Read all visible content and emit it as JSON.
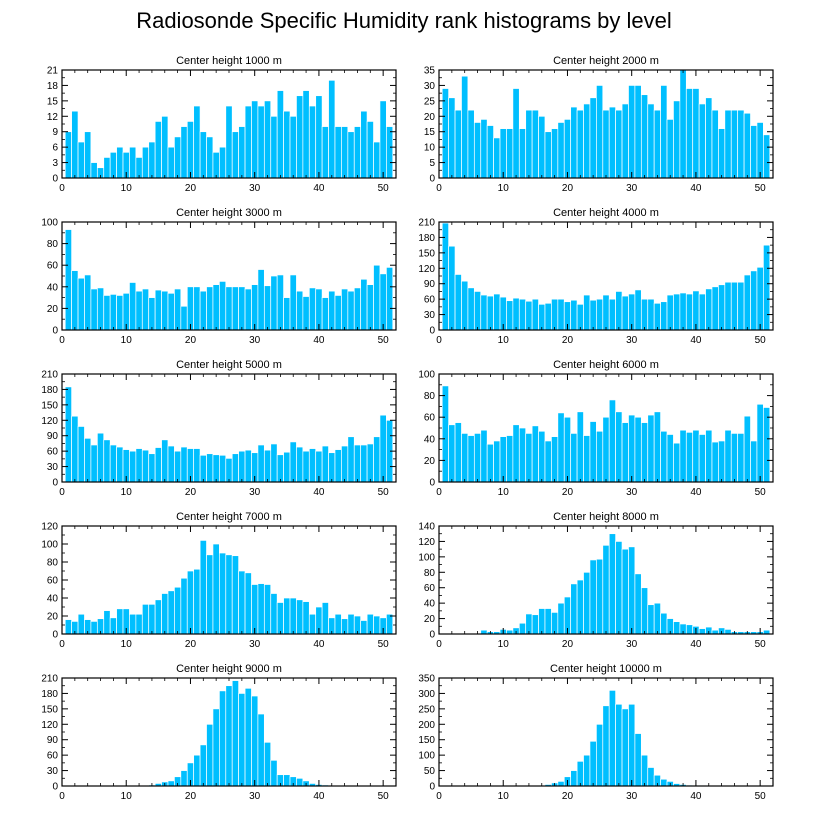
{
  "title": "Radiosonde Specific Humidity rank histograms by level",
  "style": {
    "bar_color": "#00bfff",
    "bar_edge": "#ffffff",
    "axis_color": "#000000"
  },
  "chart_data": [
    {
      "type": "bar",
      "title": "Center height 1000 m",
      "xlim": [
        0,
        52
      ],
      "ylim": [
        0,
        21
      ],
      "xticks": [
        0,
        10,
        20,
        30,
        40,
        50
      ],
      "yticks": [
        0,
        3,
        6,
        9,
        12,
        15,
        18,
        21
      ],
      "x": [
        1,
        2,
        3,
        4,
        5,
        6,
        7,
        8,
        9,
        10,
        11,
        12,
        13,
        14,
        15,
        16,
        17,
        18,
        19,
        20,
        21,
        22,
        23,
        24,
        25,
        26,
        27,
        28,
        29,
        30,
        31,
        32,
        33,
        34,
        35,
        36,
        37,
        38,
        39,
        40,
        41,
        42,
        43,
        44,
        45,
        46,
        47,
        48,
        49,
        50,
        51
      ],
      "values": [
        9,
        13,
        7,
        9,
        3,
        2,
        4,
        5,
        6,
        5,
        6,
        4,
        6,
        7,
        11,
        12,
        6,
        8,
        10,
        11,
        14,
        9,
        8,
        5,
        6,
        14,
        9,
        10,
        14,
        15,
        14,
        15,
        12,
        17,
        13,
        12,
        16,
        17,
        14,
        16,
        10,
        19,
        10,
        10,
        9,
        10,
        13,
        11,
        7,
        15,
        10
      ]
    },
    {
      "type": "bar",
      "title": "Center height 2000 m",
      "xlim": [
        0,
        52
      ],
      "ylim": [
        0,
        35
      ],
      "xticks": [
        0,
        10,
        20,
        30,
        40,
        50
      ],
      "yticks": [
        0,
        5,
        10,
        15,
        20,
        25,
        30,
        35
      ],
      "x": [
        1,
        2,
        3,
        4,
        5,
        6,
        7,
        8,
        9,
        10,
        11,
        12,
        13,
        14,
        15,
        16,
        17,
        18,
        19,
        20,
        21,
        22,
        23,
        24,
        25,
        26,
        27,
        28,
        29,
        30,
        31,
        32,
        33,
        34,
        35,
        36,
        37,
        38,
        39,
        40,
        41,
        42,
        43,
        44,
        45,
        46,
        47,
        48,
        49,
        50,
        51
      ],
      "values": [
        29,
        26,
        22,
        33,
        22,
        18,
        19,
        17,
        13,
        16,
        16,
        29,
        16,
        22,
        22,
        20,
        15,
        16,
        18,
        19,
        23,
        22,
        24,
        26,
        30,
        22,
        23,
        22,
        24,
        30,
        30,
        27,
        24,
        22,
        30,
        19,
        25,
        35,
        29,
        29,
        24,
        26,
        22,
        16,
        22,
        22,
        22,
        21,
        17,
        18,
        14
      ]
    },
    {
      "type": "bar",
      "title": "Center height 3000 m",
      "xlim": [
        0,
        52
      ],
      "ylim": [
        0,
        100
      ],
      "xticks": [
        0,
        10,
        20,
        30,
        40,
        50
      ],
      "yticks": [
        0,
        20,
        40,
        60,
        80,
        100
      ],
      "x": [
        1,
        2,
        3,
        4,
        5,
        6,
        7,
        8,
        9,
        10,
        11,
        12,
        13,
        14,
        15,
        16,
        17,
        18,
        19,
        20,
        21,
        22,
        23,
        24,
        25,
        26,
        27,
        28,
        29,
        30,
        31,
        32,
        33,
        34,
        35,
        36,
        37,
        38,
        39,
        40,
        41,
        42,
        43,
        44,
        45,
        46,
        47,
        48,
        49,
        50,
        51
      ],
      "values": [
        93,
        55,
        48,
        51,
        38,
        39,
        32,
        33,
        32,
        34,
        44,
        36,
        38,
        30,
        37,
        36,
        34,
        38,
        22,
        40,
        40,
        36,
        40,
        42,
        45,
        40,
        40,
        40,
        38,
        42,
        56,
        41,
        50,
        51,
        30,
        51,
        36,
        31,
        39,
        38,
        30,
        36,
        32,
        38,
        36,
        39,
        47,
        42,
        60,
        52,
        58
      ]
    },
    {
      "type": "bar",
      "title": "Center height 4000 m",
      "xlim": [
        0,
        52
      ],
      "ylim": [
        0,
        210
      ],
      "xticks": [
        0,
        10,
        20,
        30,
        40,
        50
      ],
      "yticks": [
        0,
        30,
        60,
        90,
        120,
        150,
        180,
        210
      ],
      "x": [
        1,
        2,
        3,
        4,
        5,
        6,
        7,
        8,
        9,
        10,
        11,
        12,
        13,
        14,
        15,
        16,
        17,
        18,
        19,
        20,
        21,
        22,
        23,
        24,
        25,
        26,
        27,
        28,
        29,
        30,
        31,
        32,
        33,
        34,
        35,
        36,
        37,
        38,
        39,
        40,
        41,
        42,
        43,
        44,
        45,
        46,
        47,
        48,
        49,
        50,
        51
      ],
      "values": [
        208,
        163,
        108,
        95,
        82,
        75,
        68,
        66,
        70,
        64,
        57,
        62,
        60,
        56,
        60,
        50,
        52,
        60,
        60,
        55,
        58,
        50,
        68,
        58,
        60,
        68,
        60,
        75,
        66,
        70,
        78,
        60,
        60,
        52,
        55,
        68,
        70,
        72,
        70,
        76,
        70,
        80,
        84,
        88,
        93,
        93,
        93,
        107,
        115,
        122,
        165
      ]
    },
    {
      "type": "bar",
      "title": "Center height 5000 m",
      "xlim": [
        0,
        52
      ],
      "ylim": [
        0,
        210
      ],
      "xticks": [
        0,
        10,
        20,
        30,
        40,
        50
      ],
      "yticks": [
        0,
        30,
        60,
        90,
        120,
        150,
        180,
        210
      ],
      "x": [
        1,
        2,
        3,
        4,
        5,
        6,
        7,
        8,
        9,
        10,
        11,
        12,
        13,
        14,
        15,
        16,
        17,
        18,
        19,
        20,
        21,
        22,
        23,
        24,
        25,
        26,
        27,
        28,
        29,
        30,
        31,
        32,
        33,
        34,
        35,
        36,
        37,
        38,
        39,
        40,
        41,
        42,
        43,
        44,
        45,
        46,
        47,
        48,
        49,
        50,
        51
      ],
      "values": [
        185,
        128,
        108,
        85,
        72,
        95,
        82,
        72,
        68,
        63,
        60,
        65,
        62,
        55,
        67,
        82,
        70,
        60,
        68,
        65,
        65,
        52,
        55,
        53,
        52,
        46,
        55,
        60,
        62,
        57,
        72,
        62,
        74,
        53,
        58,
        78,
        68,
        60,
        65,
        60,
        70,
        57,
        63,
        70,
        88,
        72,
        72,
        74,
        88,
        130,
        120
      ]
    },
    {
      "type": "bar",
      "title": "Center height 6000 m",
      "xlim": [
        0,
        52
      ],
      "ylim": [
        0,
        100
      ],
      "xticks": [
        0,
        10,
        20,
        30,
        40,
        50
      ],
      "yticks": [
        0,
        20,
        40,
        60,
        80,
        100
      ],
      "x": [
        1,
        2,
        3,
        4,
        5,
        6,
        7,
        8,
        9,
        10,
        11,
        12,
        13,
        14,
        15,
        16,
        17,
        18,
        19,
        20,
        21,
        22,
        23,
        24,
        25,
        26,
        27,
        28,
        29,
        30,
        31,
        32,
        33,
        34,
        35,
        36,
        37,
        38,
        39,
        40,
        41,
        42,
        43,
        44,
        45,
        46,
        47,
        48,
        49,
        50,
        51
      ],
      "values": [
        89,
        53,
        55,
        45,
        43,
        45,
        48,
        35,
        38,
        42,
        43,
        53,
        50,
        45,
        52,
        47,
        38,
        42,
        64,
        60,
        45,
        65,
        43,
        56,
        47,
        60,
        76,
        65,
        55,
        62,
        60,
        55,
        62,
        65,
        47,
        44,
        36,
        48,
        46,
        48,
        44,
        48,
        37,
        38,
        48,
        45,
        45,
        61,
        38,
        72,
        69
      ]
    },
    {
      "type": "bar",
      "title": "Center height 7000 m",
      "xlim": [
        0,
        52
      ],
      "ylim": [
        0,
        120
      ],
      "xticks": [
        0,
        10,
        20,
        30,
        40,
        50
      ],
      "yticks": [
        0,
        20,
        40,
        60,
        80,
        100,
        120
      ],
      "x": [
        1,
        2,
        3,
        4,
        5,
        6,
        7,
        8,
        9,
        10,
        11,
        12,
        13,
        14,
        15,
        16,
        17,
        18,
        19,
        20,
        21,
        22,
        23,
        24,
        25,
        26,
        27,
        28,
        29,
        30,
        31,
        32,
        33,
        34,
        35,
        36,
        37,
        38,
        39,
        40,
        41,
        42,
        43,
        44,
        45,
        46,
        47,
        48,
        49,
        50,
        51
      ],
      "values": [
        16,
        14,
        22,
        16,
        14,
        17,
        26,
        18,
        28,
        28,
        22,
        22,
        33,
        33,
        38,
        45,
        48,
        52,
        62,
        70,
        72,
        104,
        88,
        100,
        90,
        88,
        87,
        70,
        68,
        55,
        56,
        55,
        45,
        35,
        40,
        40,
        38,
        36,
        22,
        30,
        35,
        18,
        22,
        17,
        22,
        20,
        15,
        22,
        20,
        18,
        22
      ]
    },
    {
      "type": "bar",
      "title": "Center height 8000 m",
      "xlim": [
        0,
        52
      ],
      "ylim": [
        0,
        140
      ],
      "xticks": [
        0,
        10,
        20,
        30,
        40,
        50
      ],
      "yticks": [
        0,
        20,
        40,
        60,
        80,
        100,
        120,
        140
      ],
      "x": [
        1,
        2,
        3,
        4,
        5,
        6,
        7,
        8,
        9,
        10,
        11,
        12,
        13,
        14,
        15,
        16,
        17,
        18,
        19,
        20,
        21,
        22,
        23,
        24,
        25,
        26,
        27,
        28,
        29,
        30,
        31,
        32,
        33,
        34,
        35,
        36,
        37,
        38,
        39,
        40,
        41,
        42,
        43,
        44,
        45,
        46,
        47,
        48,
        49,
        50,
        51
      ],
      "values": [
        0,
        0,
        0,
        0,
        0,
        0,
        5,
        3,
        3,
        6,
        5,
        8,
        14,
        26,
        25,
        33,
        33,
        28,
        40,
        48,
        65,
        70,
        80,
        96,
        97,
        115,
        130,
        120,
        110,
        113,
        78,
        60,
        38,
        40,
        27,
        20,
        16,
        13,
        12,
        10,
        7,
        9,
        5,
        8,
        6,
        3,
        3,
        3,
        3,
        3,
        5
      ]
    },
    {
      "type": "bar",
      "title": "Center height 9000 m",
      "xlim": [
        0,
        52
      ],
      "ylim": [
        0,
        210
      ],
      "xticks": [
        0,
        10,
        20,
        30,
        40,
        50
      ],
      "yticks": [
        0,
        30,
        60,
        90,
        120,
        150,
        180,
        210
      ],
      "x": [
        1,
        2,
        3,
        4,
        5,
        6,
        7,
        8,
        9,
        10,
        11,
        12,
        13,
        14,
        15,
        16,
        17,
        18,
        19,
        20,
        21,
        22,
        23,
        24,
        25,
        26,
        27,
        28,
        29,
        30,
        31,
        32,
        33,
        34,
        35,
        36,
        37,
        38,
        39,
        40,
        41,
        42,
        43,
        44,
        45,
        46,
        47,
        48,
        49,
        50,
        51
      ],
      "values": [
        0,
        0,
        0,
        0,
        0,
        0,
        0,
        0,
        0,
        0,
        0,
        1,
        1,
        2,
        5,
        8,
        10,
        18,
        30,
        45,
        60,
        80,
        120,
        150,
        185,
        195,
        205,
        180,
        190,
        175,
        140,
        85,
        50,
        22,
        22,
        18,
        15,
        10,
        5,
        3,
        2,
        1,
        1,
        0,
        0,
        0,
        0,
        0,
        0,
        0,
        0
      ]
    },
    {
      "type": "bar",
      "title": "Center height 10000 m",
      "xlim": [
        0,
        52
      ],
      "ylim": [
        0,
        350
      ],
      "xticks": [
        0,
        10,
        20,
        30,
        40,
        50
      ],
      "yticks": [
        0,
        50,
        100,
        150,
        200,
        250,
        300,
        350
      ],
      "x": [
        1,
        2,
        3,
        4,
        5,
        6,
        7,
        8,
        9,
        10,
        11,
        12,
        13,
        14,
        15,
        16,
        17,
        18,
        19,
        20,
        21,
        22,
        23,
        24,
        25,
        26,
        27,
        28,
        29,
        30,
        31,
        32,
        33,
        34,
        35,
        36,
        37,
        38,
        39,
        40,
        41,
        42,
        43,
        44,
        45,
        46,
        47,
        48,
        49,
        50,
        51
      ],
      "values": [
        0,
        0,
        0,
        0,
        0,
        0,
        0,
        0,
        0,
        0,
        0,
        0,
        0,
        0,
        0,
        2,
        5,
        10,
        15,
        30,
        50,
        80,
        100,
        145,
        200,
        260,
        310,
        265,
        250,
        265,
        170,
        100,
        60,
        35,
        22,
        15,
        8,
        5,
        3,
        2,
        2,
        1,
        1,
        0,
        0,
        0,
        0,
        0,
        0,
        0,
        0
      ]
    }
  ]
}
